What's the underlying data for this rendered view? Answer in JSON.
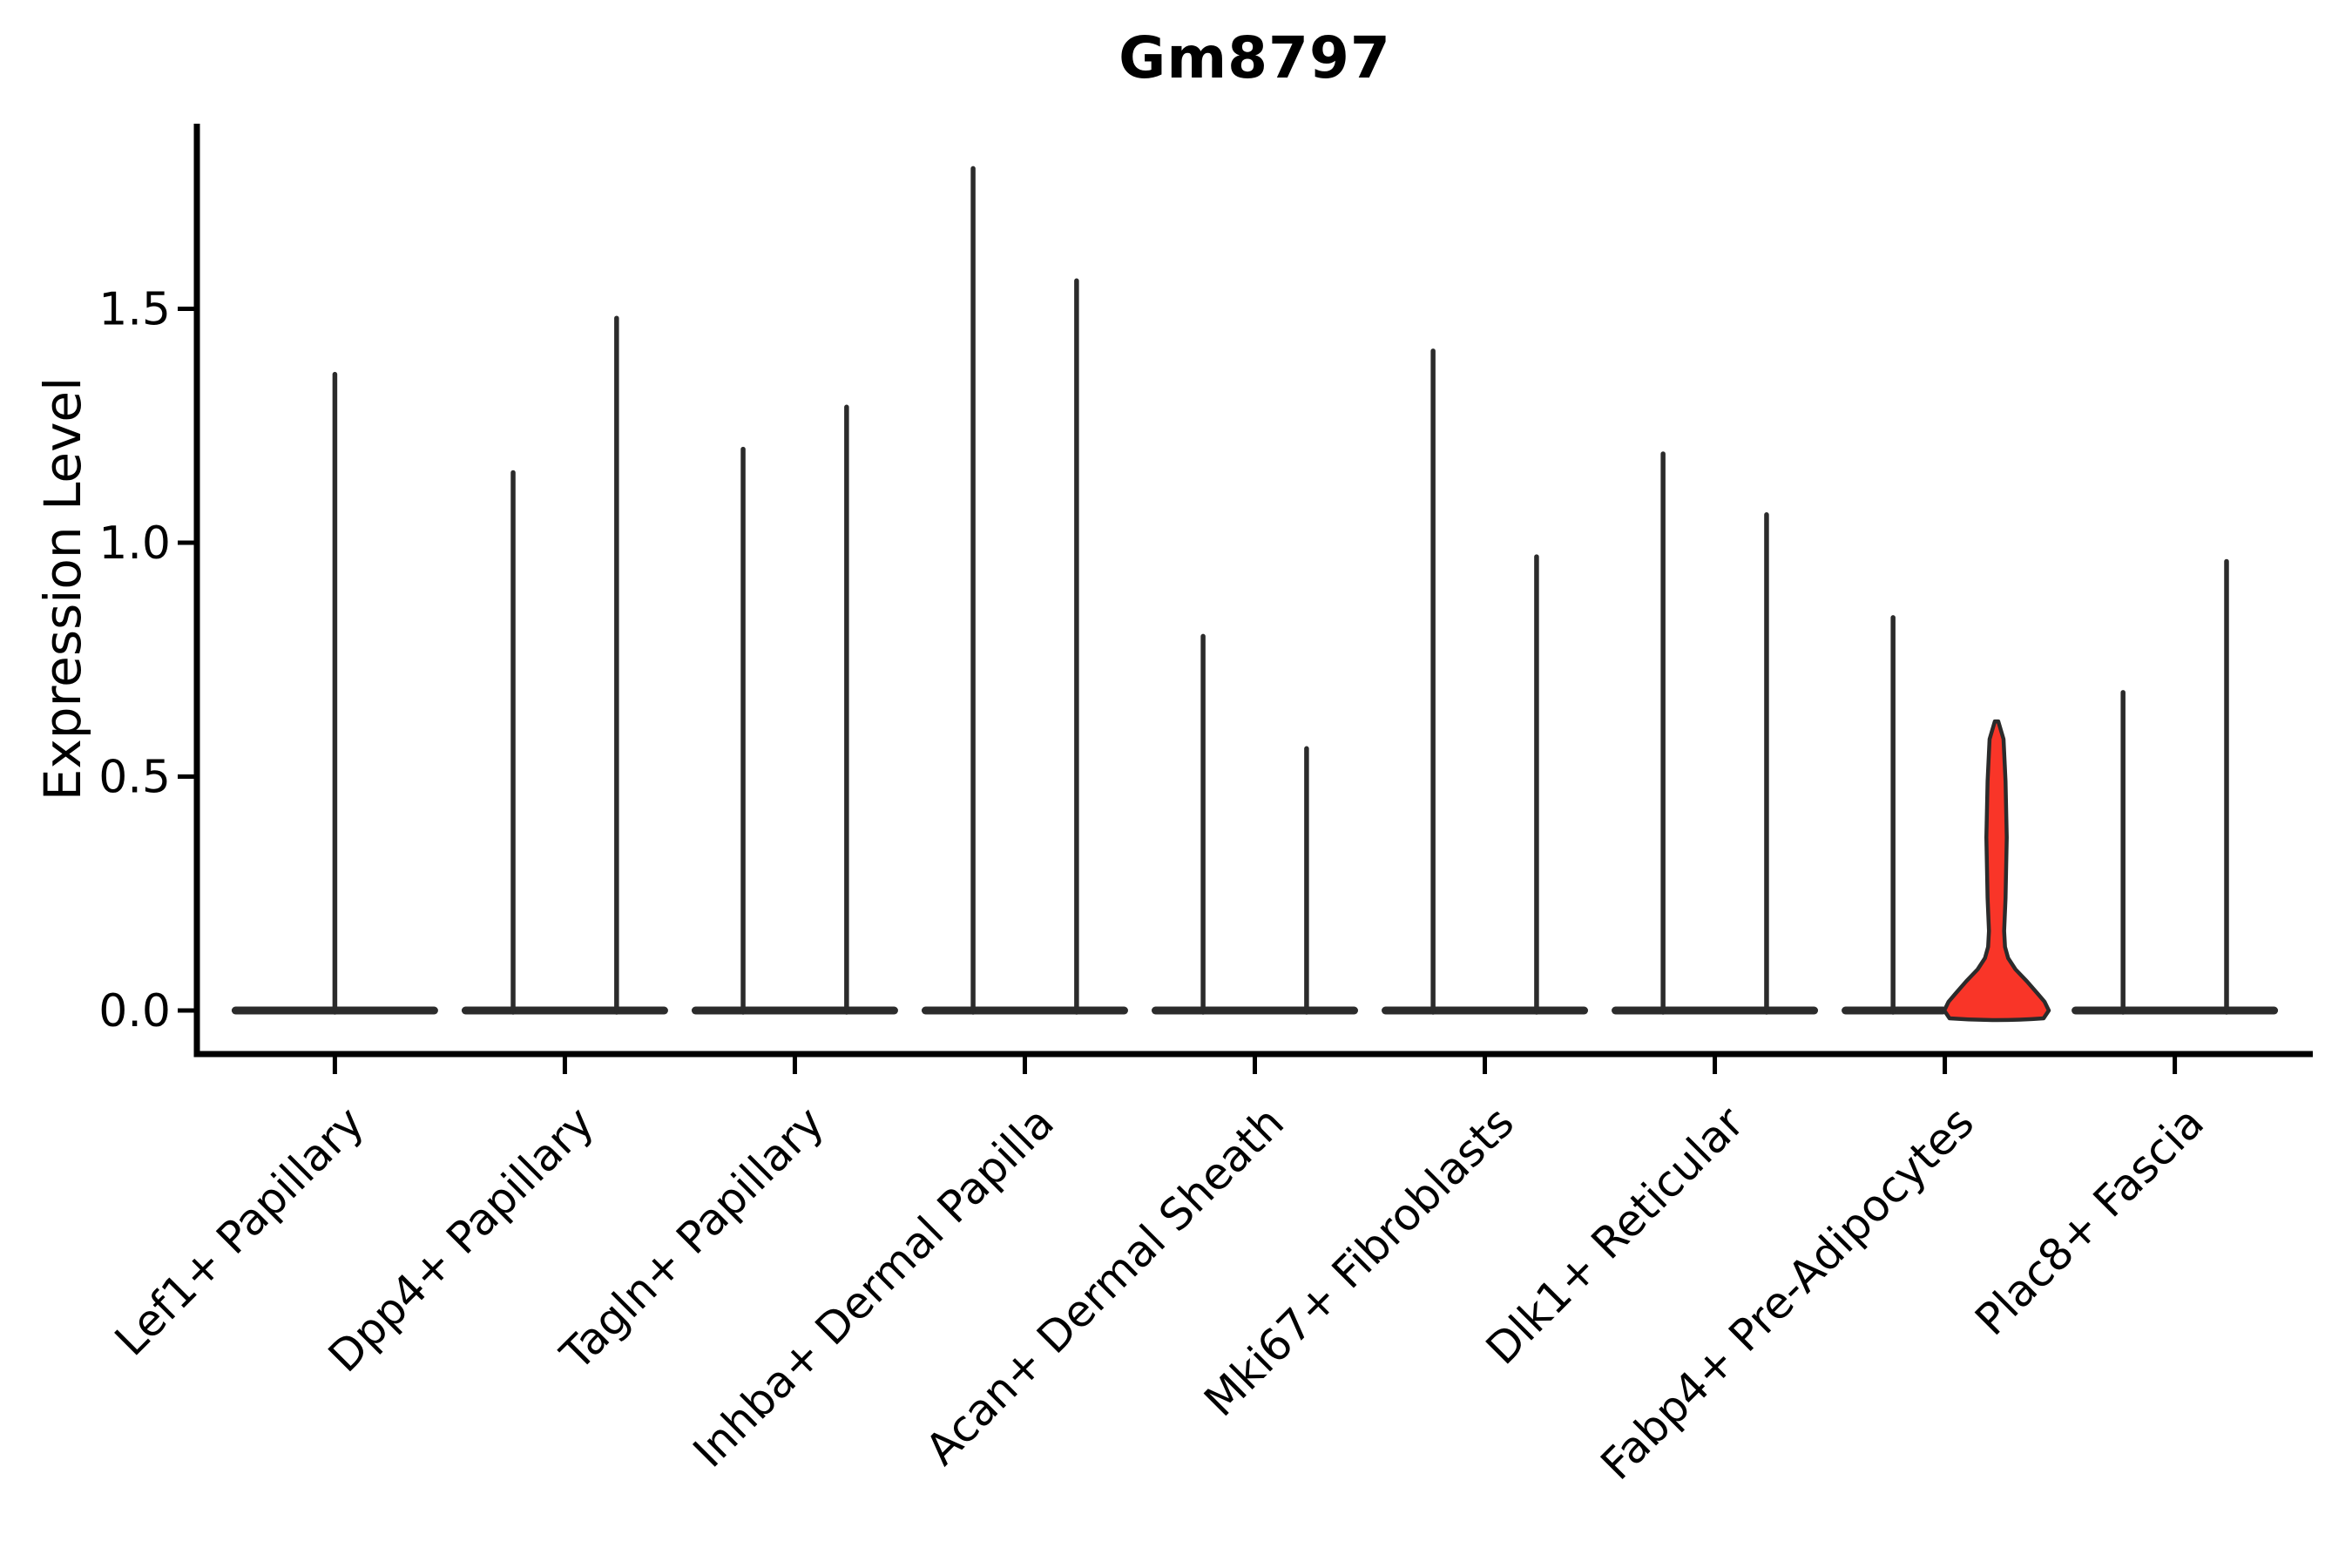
{
  "chart_data": {
    "type": "violin",
    "title": "Gm8797",
    "ylabel": "Expression Level",
    "xlabel": "",
    "ytick_labels": [
      "0.0",
      "0.5",
      "1.0",
      "1.5"
    ],
    "ytick_values": [
      0,
      0.5,
      1.0,
      1.5
    ],
    "ylim": [
      -0.095,
      1.9
    ],
    "grid": false,
    "legend": null,
    "categories": [
      "Lef1+ Papillary",
      "Dpp4+ Papillary",
      "Tagln+ Papillary",
      "Inhba+ Dermal Papilla",
      "Acan+ Dermal Sheath",
      "Mki67+ Fibroblasts",
      "Dlk1+ Reticular",
      "Fabp4+ Pre-Adipocytes",
      "Plac8+ Fascia"
    ],
    "violins": [
      {
        "category": "Lef1+ Papillary",
        "groups": [
          {
            "max": 1.36
          }
        ]
      },
      {
        "category": "Dpp4+ Papillary",
        "groups": [
          {
            "max": 1.15
          },
          {
            "max": 1.48
          }
        ]
      },
      {
        "category": "Tagln+ Papillary",
        "groups": [
          {
            "max": 1.2
          },
          {
            "max": 1.29
          }
        ]
      },
      {
        "category": "Inhba+ Dermal Papilla",
        "groups": [
          {
            "max": 1.8
          },
          {
            "max": 1.56
          }
        ]
      },
      {
        "category": "Acan+ Dermal Sheath",
        "groups": [
          {
            "max": 0.8
          },
          {
            "max": 0.56
          }
        ]
      },
      {
        "category": "Mki67+ Fibroblasts",
        "groups": [
          {
            "max": 1.41
          },
          {
            "max": 0.97
          }
        ]
      },
      {
        "category": "Dlk1+ Reticular",
        "groups": [
          {
            "max": 1.19
          },
          {
            "max": 1.06
          }
        ]
      },
      {
        "category": "Fabp4+ Pre-Adipocytes",
        "groups": [
          {
            "max": 0.84
          },
          {
            "max": 0.62,
            "highlighted": true,
            "profile": [
              [
                0.618,
                2
              ],
              [
                0.58,
                8
              ],
              [
                0.49,
                10.3
              ],
              [
                0.37,
                11.7
              ],
              [
                0.24,
                10.3
              ],
              [
                0.17,
                8.7
              ],
              [
                0.136,
                9.7
              ],
              [
                0.112,
                13.3
              ],
              [
                0.088,
                21.7
              ],
              [
                0.062,
                35
              ],
              [
                0.037,
                46.7
              ],
              [
                0.019,
                55
              ],
              [
                0,
                60
              ]
            ]
          }
        ]
      },
      {
        "category": "Plac8+ Fascia",
        "groups": [
          {
            "max": 0.68
          },
          {
            "max": 0.96
          }
        ]
      }
    ],
    "colors": {
      "violin_line": "#2b2b2b",
      "highlight_fill": "#f93528",
      "axis": "#000000",
      "background": "#ffffff"
    }
  }
}
